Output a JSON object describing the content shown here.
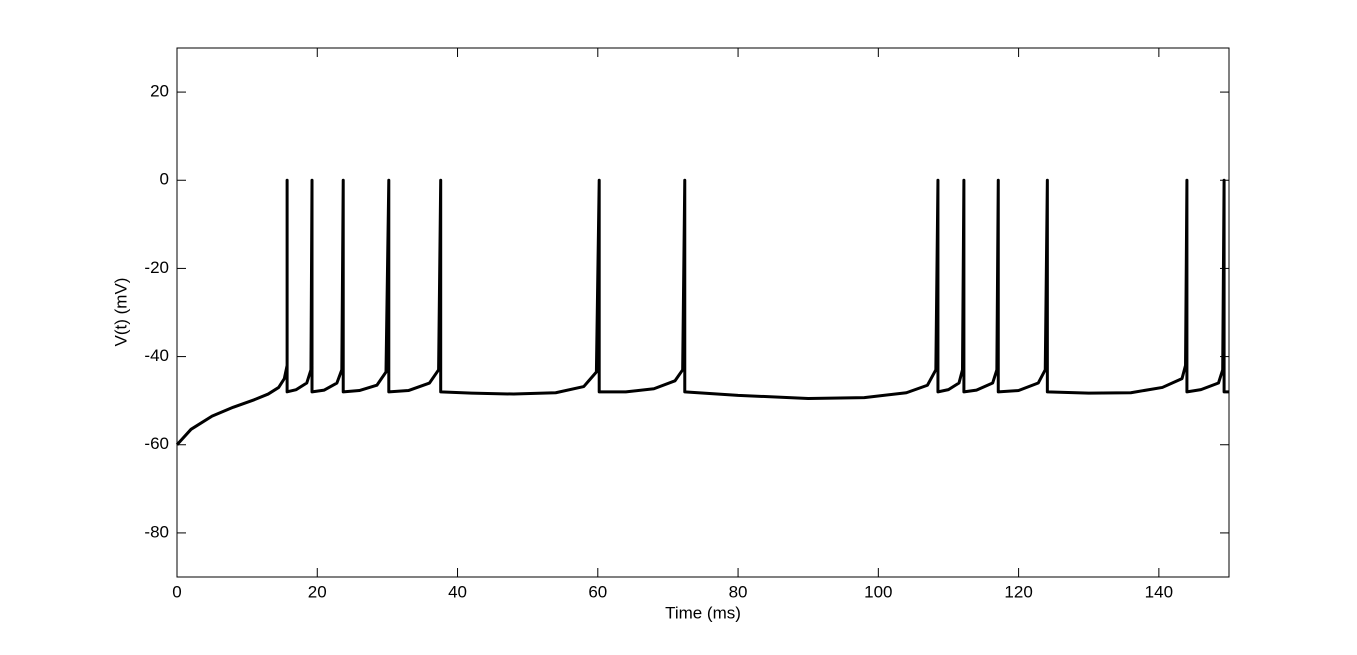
{
  "chart_data": {
    "type": "line",
    "xlabel": "Time (ms)",
    "ylabel": "V(t) (mV)",
    "xlim": [
      0,
      150
    ],
    "ylim": [
      -90,
      30
    ],
    "xticks": [
      0,
      20,
      40,
      60,
      80,
      100,
      120,
      140
    ],
    "yticks": [
      -80,
      -60,
      -40,
      -20,
      0,
      20
    ],
    "grid": false,
    "series": [
      {
        "color": "#000000",
        "x": [
          0,
          2,
          5,
          8,
          11,
          13,
          14.5,
          15.3,
          15.7,
          15.7,
          15.7,
          17,
          18.5,
          19.1,
          19.25,
          19.25,
          21,
          22.8,
          23.5,
          23.7,
          23.7,
          26,
          28.5,
          29.8,
          30.2,
          30.2,
          33,
          36,
          37.3,
          37.6,
          37.6,
          42,
          48,
          54,
          58,
          59.8,
          60.2,
          60.2,
          64,
          68,
          71,
          72.1,
          72.4,
          72.4,
          80,
          90,
          98,
          104,
          107,
          108.2,
          108.5,
          108.5,
          110,
          111.5,
          112,
          112.2,
          112.2,
          114,
          116.3,
          116.9,
          117.1,
          117.1,
          120,
          122.8,
          123.8,
          124.1,
          124.1,
          130,
          136,
          140.5,
          143.3,
          143.8,
          144,
          144,
          146,
          148.5,
          149.1,
          149.3,
          149.3,
          150
        ],
        "values": [
          -60,
          -56.5,
          -53.5,
          -51.5,
          -49.8,
          -48.5,
          -47,
          -45,
          -42,
          0,
          -48,
          -47.5,
          -46,
          -43,
          0,
          -48,
          -47.6,
          -46,
          -43,
          0,
          -48,
          -47.7,
          -46.5,
          -43.5,
          0,
          -48,
          -47.7,
          -46,
          -43,
          0,
          -48,
          -48.3,
          -48.5,
          -48.2,
          -46.8,
          -43.5,
          0,
          -48,
          -48,
          -47.3,
          -45.5,
          -43,
          0,
          -48,
          -48.8,
          -49.5,
          -49.3,
          -48.2,
          -46.5,
          -43,
          0,
          -48,
          -47.5,
          -46,
          -43,
          0,
          -48,
          -47.6,
          -46,
          -43,
          0,
          -48,
          -47.7,
          -46,
          -43,
          0,
          -48,
          -48.3,
          -48.2,
          -47,
          -45,
          -42,
          0,
          -48,
          -47.5,
          -46,
          -43,
          0,
          -48,
          -48
        ]
      }
    ]
  }
}
